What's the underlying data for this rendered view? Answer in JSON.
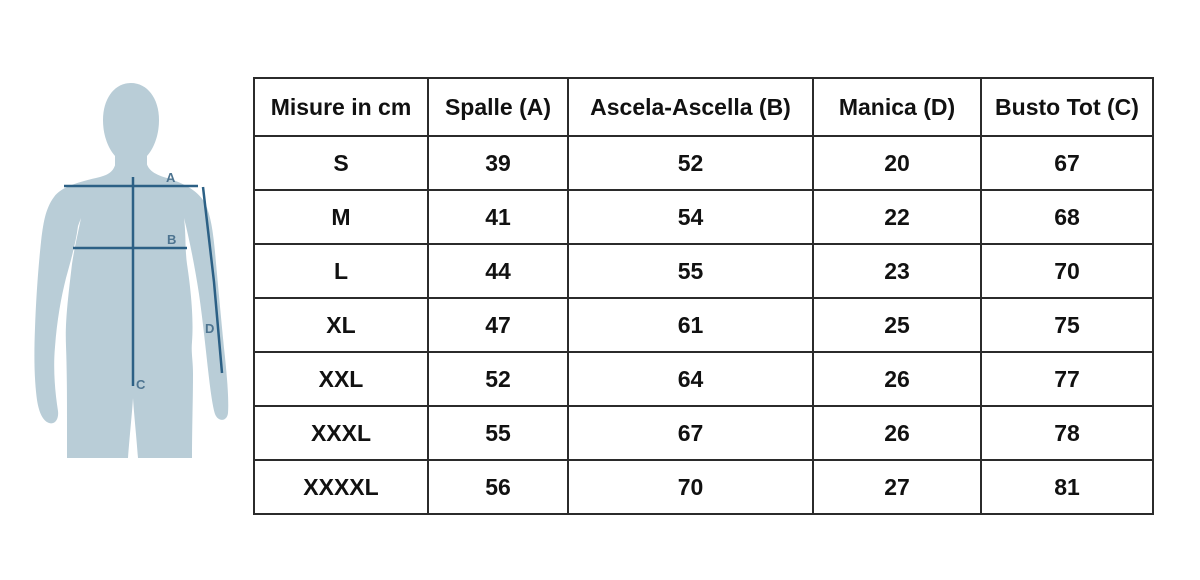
{
  "figure": {
    "description": "male-torso-silhouette-with-measurement-lines",
    "labels": {
      "a": "A",
      "b": "B",
      "c": "C",
      "d": "D"
    },
    "colors": {
      "body_fill": "#b9cdd7",
      "measure_line": "#2c6085",
      "label_text": "#4d7490"
    }
  },
  "table": {
    "columns": [
      "Misure in cm",
      "Spalle (A)",
      "Ascela-Ascella (B)",
      "Manica (D)",
      "Busto Tot (C)"
    ],
    "rows": [
      {
        "size": "S",
        "values": [
          "39",
          "52",
          "20",
          "67"
        ]
      },
      {
        "size": "M",
        "values": [
          "41",
          "54",
          "22",
          "68"
        ]
      },
      {
        "size": "L",
        "values": [
          "44",
          "55",
          "23",
          "70"
        ]
      },
      {
        "size": "XL",
        "values": [
          "47",
          "61",
          "25",
          "75"
        ]
      },
      {
        "size": "XXL",
        "values": [
          "52",
          "64",
          "26",
          "77"
        ]
      },
      {
        "size": "XXXL",
        "values": [
          "55",
          "67",
          "26",
          "78"
        ]
      },
      {
        "size": "XXXXL",
        "values": [
          "56",
          "70",
          "27",
          "81"
        ]
      }
    ]
  },
  "chart_data": {
    "type": "table",
    "title": "Misure in cm",
    "columns": [
      "Misure in cm",
      "Spalle (A)",
      "Ascela-Ascella (B)",
      "Manica (D)",
      "Busto Tot (C)"
    ],
    "rows": [
      [
        "S",
        39,
        52,
        20,
        67
      ],
      [
        "M",
        41,
        54,
        22,
        68
      ],
      [
        "L",
        44,
        55,
        23,
        70
      ],
      [
        "XL",
        47,
        61,
        25,
        75
      ],
      [
        "XXL",
        52,
        64,
        26,
        77
      ],
      [
        "XXXL",
        55,
        67,
        26,
        78
      ],
      [
        "XXXXL",
        56,
        70,
        27,
        81
      ]
    ],
    "diagram_markers": [
      "A",
      "B",
      "C",
      "D"
    ],
    "legend_position": "none",
    "grid": true
  }
}
